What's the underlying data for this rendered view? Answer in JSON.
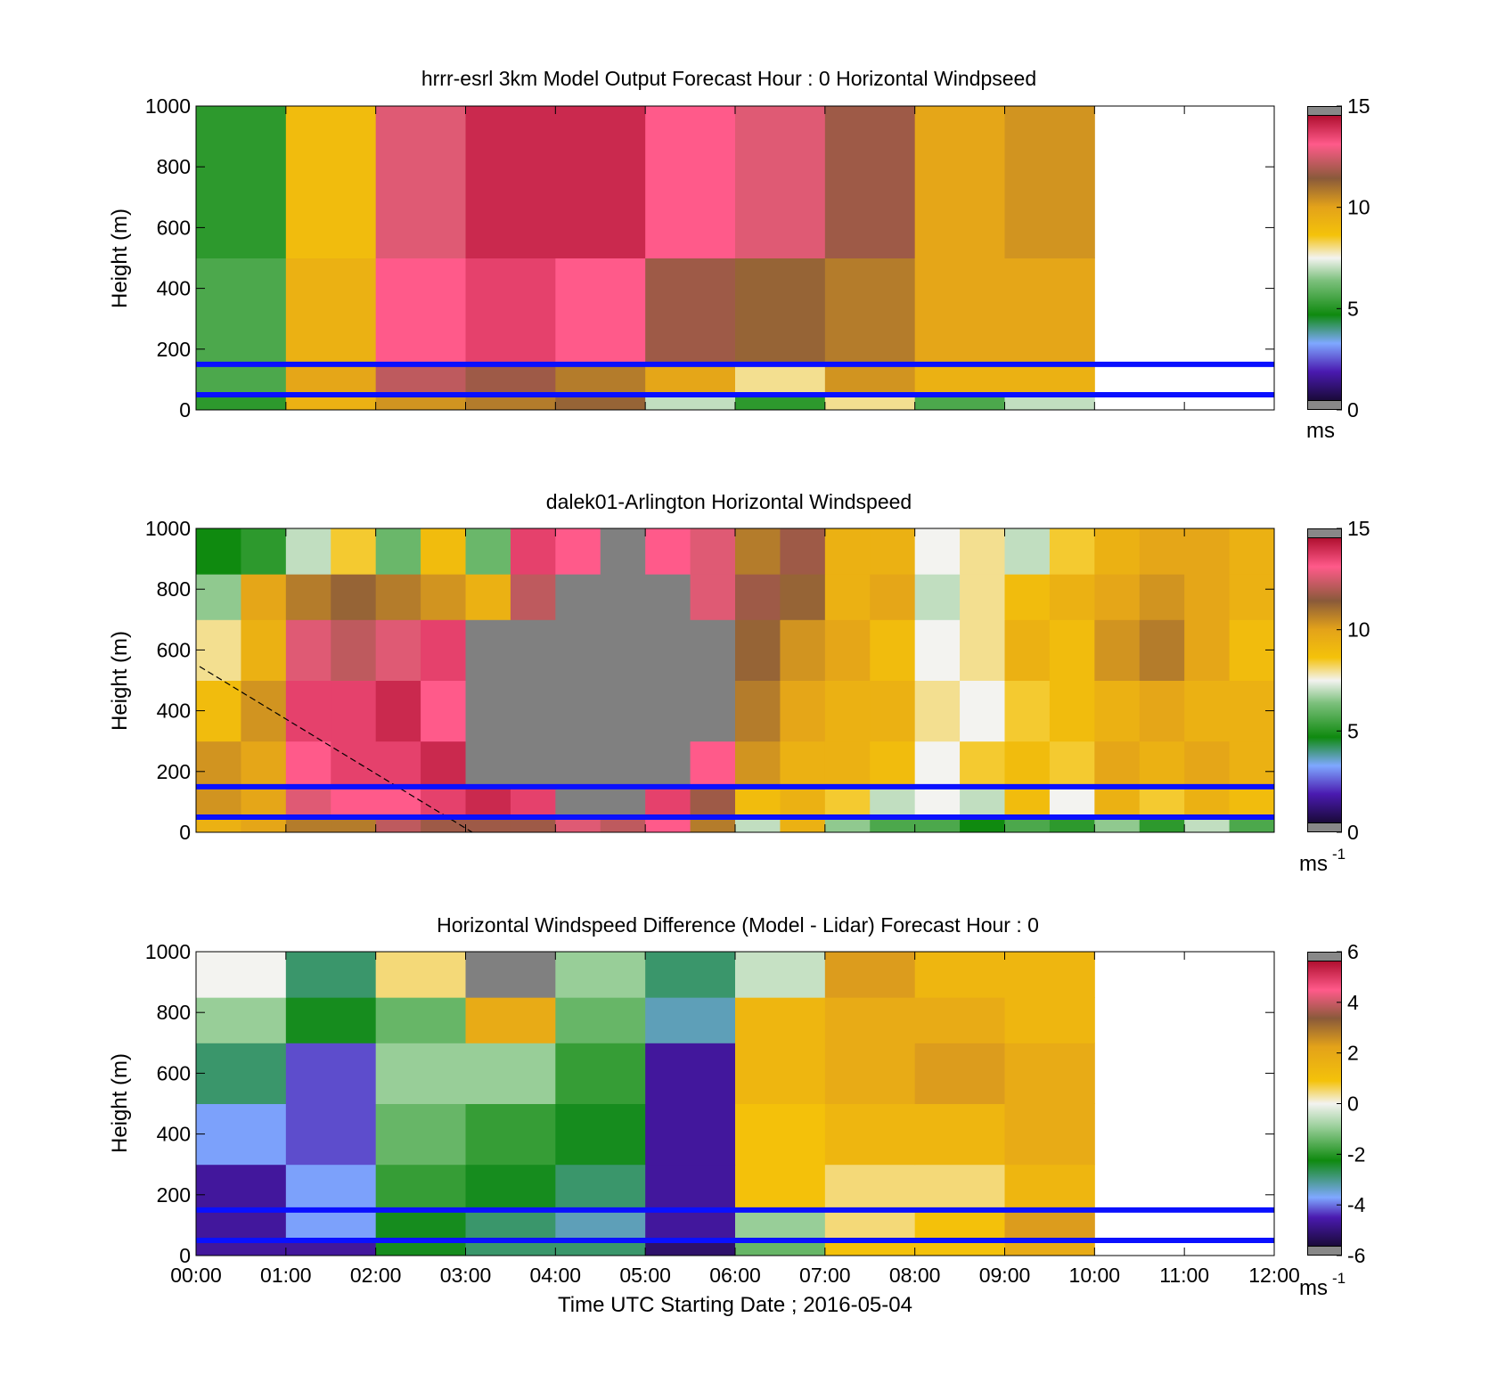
{
  "chart_data": [
    {
      "type": "heatmap",
      "title": "hrrr-esrl 3km Model Output   Forecast Hour : 0 Horizontal Windpseed",
      "ylabel": "Height (m)",
      "ylim": [
        0,
        1000
      ],
      "yticks": [
        "0",
        "200",
        "400",
        "600",
        "800",
        "1000"
      ],
      "xlim": [
        "00:00",
        "12:00"
      ],
      "colorbar": {
        "ticks": [
          "0",
          "5",
          "10",
          "15"
        ],
        "unit": "ms",
        "unit_sup": "",
        "range": [
          0,
          15
        ]
      },
      "reference_lines_m": [
        150,
        50
      ],
      "x_start_hours": [
        0,
        1,
        2,
        3,
        4,
        5,
        6,
        7,
        8,
        9
      ],
      "column_width_hours": 1,
      "level_edges_m": [
        0,
        50,
        150,
        500,
        1000
      ],
      "values": [
        [
          5.0,
          9.5,
          10.5,
          11.0,
          11.5,
          7.0,
          5.0,
          8.0,
          5.5,
          7.0
        ],
        [
          5.5,
          10.0,
          12.5,
          12.0,
          11.0,
          10.0,
          8.0,
          10.5,
          9.5,
          9.5
        ],
        [
          5.5,
          9.5,
          13.5,
          14.0,
          13.5,
          12.0,
          11.5,
          11.0,
          10.0,
          10.0
        ],
        [
          5.0,
          9.0,
          13.0,
          14.5,
          14.5,
          13.5,
          13.0,
          12.0,
          10.0,
          10.5
        ]
      ]
    },
    {
      "type": "heatmap",
      "title": "dalek01-Arlington  Horizontal Windspeed",
      "ylabel": "Height (m)",
      "ylim": [
        0,
        1000
      ],
      "yticks": [
        "0",
        "200",
        "400",
        "600",
        "800",
        "1000"
      ],
      "xlim": [
        "00:00",
        "12:00"
      ],
      "colorbar": {
        "ticks": [
          "0",
          "5",
          "10",
          "15"
        ],
        "unit": "ms",
        "unit_sup": "-1",
        "range": [
          0,
          15
        ]
      },
      "reference_lines_m": [
        150,
        50
      ],
      "x_start_hours": [
        0,
        0.5,
        1,
        1.5,
        2,
        2.5,
        3,
        3.5,
        4,
        4.5,
        5,
        5.5,
        6,
        6.5,
        7,
        7.5,
        8,
        8.5,
        9,
        9.5,
        10,
        10.5,
        11,
        11.5
      ],
      "column_width_hours": 0.5,
      "level_edges_m": [
        0,
        50,
        150,
        300,
        500,
        700,
        850,
        1000
      ],
      "values": [
        [
          9.5,
          10.0,
          11.0,
          11.0,
          12.5,
          12.0,
          12.0,
          12.0,
          13.0,
          12.5,
          13.5,
          11.0,
          7.0,
          9.5,
          6.5,
          5.5,
          5.5,
          4.5,
          5.5,
          5.0,
          6.5,
          5.0,
          7.0,
          5.5
        ],
        [
          10.5,
          10.0,
          13.0,
          13.5,
          13.5,
          14.0,
          14.5,
          14.0,
          null,
          null,
          14.0,
          12.0,
          9.0,
          9.5,
          8.5,
          7.0,
          7.5,
          7.0,
          9.0,
          7.5,
          9.5,
          8.5,
          9.5,
          9.0
        ],
        [
          10.5,
          10.0,
          13.5,
          14.0,
          14.0,
          14.5,
          null,
          null,
          null,
          null,
          null,
          13.5,
          10.5,
          9.5,
          9.5,
          9.0,
          7.5,
          8.5,
          9.0,
          8.5,
          10.0,
          9.5,
          10.0,
          9.5
        ],
        [
          9.0,
          10.5,
          14.0,
          14.0,
          14.5,
          13.5,
          null,
          null,
          null,
          null,
          null,
          null,
          11.0,
          10.0,
          9.5,
          9.5,
          8.0,
          7.5,
          8.5,
          9.0,
          9.5,
          10.0,
          9.5,
          9.5
        ],
        [
          8.0,
          9.5,
          13.0,
          12.5,
          13.0,
          14.0,
          null,
          null,
          null,
          null,
          null,
          null,
          11.5,
          10.5,
          10.0,
          9.0,
          7.5,
          8.0,
          9.5,
          9.0,
          10.5,
          11.0,
          10.0,
          9.0
        ],
        [
          6.5,
          10.0,
          11.0,
          11.5,
          11.0,
          10.5,
          9.5,
          12.5,
          null,
          null,
          null,
          13.0,
          12.0,
          11.5,
          9.5,
          10.0,
          7.0,
          8.0,
          9.0,
          9.5,
          10.0,
          10.5,
          10.0,
          9.5
        ],
        [
          4.5,
          5.0,
          7.0,
          8.5,
          6.0,
          9.0,
          6.0,
          14.0,
          13.5,
          null,
          13.5,
          13.0,
          11.0,
          12.0,
          9.5,
          9.5,
          7.5,
          8.0,
          7.0,
          8.5,
          9.5,
          10.0,
          10.0,
          9.5
        ]
      ]
    },
    {
      "type": "heatmap",
      "title": "Horizontal Windspeed Difference (Model - Lidar) Forecast Hour : 0",
      "ylabel": "Height (m)",
      "xlabel": "Time UTC  Starting Date ; 2016-05-04",
      "ylim": [
        0,
        1000
      ],
      "yticks": [
        "0",
        "200",
        "400",
        "600",
        "800",
        "1000"
      ],
      "xticks": [
        "00:00",
        "01:00",
        "02:00",
        "03:00",
        "04:00",
        "05:00",
        "06:00",
        "07:00",
        "08:00",
        "09:00",
        "10:00",
        "11:00",
        "12:00"
      ],
      "colorbar": {
        "ticks": [
          "-6",
          "-4",
          "-2",
          "0",
          "2",
          "4",
          "6"
        ],
        "unit": "ms",
        "unit_sup": "-1",
        "range": [
          -6,
          6
        ]
      },
      "reference_lines_m": [
        150,
        50
      ],
      "x_start_hours": [
        0,
        1,
        2,
        3,
        4,
        5,
        6,
        7,
        8,
        9
      ],
      "column_width_hours": 1,
      "level_edges_m": [
        0,
        50,
        150,
        300,
        500,
        700,
        850,
        1000
      ],
      "values": [
        [
          -5.0,
          -5.0,
          -2.5,
          -3.0,
          -3.0,
          -5.5,
          -1.5,
          1.0,
          1.0,
          2.0
        ],
        [
          -5.0,
          -4.0,
          -2.5,
          -3.0,
          -3.5,
          -5.0,
          -1.0,
          0.5,
          1.0,
          2.5
        ],
        [
          -5.0,
          -4.0,
          -2.0,
          -2.5,
          -3.0,
          -5.0,
          1.0,
          0.5,
          0.5,
          1.5
        ],
        [
          -4.0,
          -4.5,
          -1.5,
          -2.0,
          -2.5,
          -5.0,
          1.0,
          1.5,
          1.5,
          2.0
        ],
        [
          -3.0,
          -4.5,
          -1.0,
          -1.0,
          -2.0,
          -5.0,
          1.5,
          2.0,
          2.5,
          2.0
        ],
        [
          -1.0,
          -2.5,
          -1.5,
          2.0,
          -1.5,
          -3.5,
          1.5,
          2.0,
          2.0,
          1.5
        ],
        [
          0.0,
          -3.0,
          0.5,
          null,
          -1.0,
          -3.0,
          -0.5,
          2.5,
          1.5,
          1.5
        ]
      ]
    }
  ]
}
